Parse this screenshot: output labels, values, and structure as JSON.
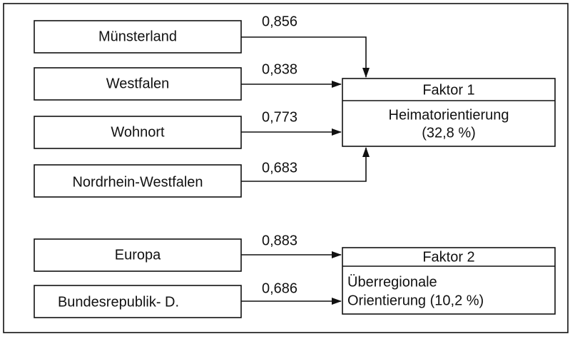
{
  "sources": [
    {
      "label": "Münsterland",
      "loading": "0,856"
    },
    {
      "label": "Westfalen",
      "loading": "0,838"
    },
    {
      "label": "Wohnort",
      "loading": "0,773"
    },
    {
      "label": "Nordrhein-Westfalen",
      "loading": "0,683"
    },
    {
      "label": "Europa",
      "loading": "0,883"
    },
    {
      "label": "Bundesrepublik- D.",
      "loading": "0,686"
    }
  ],
  "factors": [
    {
      "title": "Faktor 1",
      "lines": [
        "Heimatorientierung",
        "(32,8 %)"
      ]
    },
    {
      "title": "Faktor 2",
      "lines": [
        "Überregionale",
        "Orientierung (10,2 %)"
      ]
    }
  ]
}
